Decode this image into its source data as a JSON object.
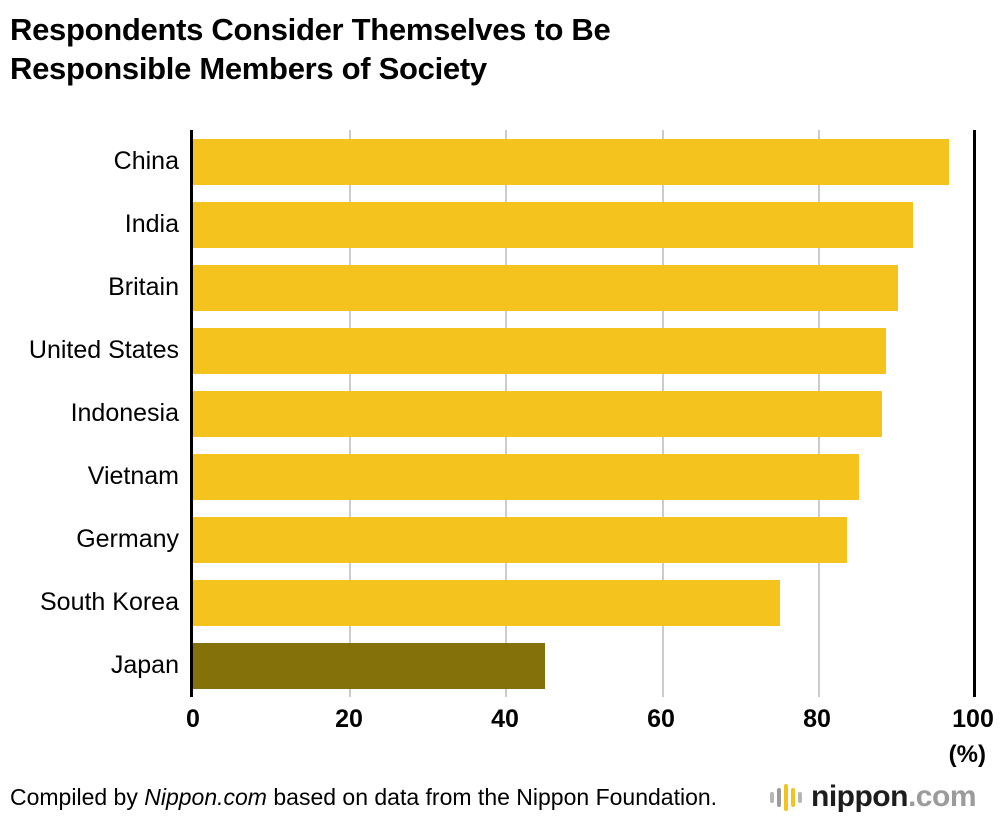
{
  "title": "Respondents Consider Themselves to Be Responsible Members of Society",
  "chart_data": {
    "type": "bar",
    "orientation": "horizontal",
    "title": "Respondents Consider Themselves to Be Responsible Members of Society",
    "categories": [
      "China",
      "India",
      "Britain",
      "United States",
      "Indonesia",
      "Vietnam",
      "Germany",
      "South Korea",
      "Japan"
    ],
    "values": [
      96.5,
      92,
      90,
      88.5,
      88,
      85,
      83.5,
      75,
      45
    ],
    "xlim": [
      0,
      100
    ],
    "x_ticks": [
      0,
      20,
      40,
      60,
      80,
      100
    ],
    "unit_label": "(%)",
    "xlabel": "",
    "ylabel": "",
    "grid": true,
    "gridline_color": "#cccccc",
    "bar_color": "#f5c31e",
    "highlight_category": "Japan",
    "highlight_color": "#857109",
    "legend": "none"
  },
  "footer": {
    "prefix": "Compiled by ",
    "source_italic": "Nippon.com",
    "suffix": " based on data from the Nippon Foundation.",
    "logo": {
      "name": "nippon",
      "tld": ".com",
      "bars": [
        {
          "h": 11,
          "c": "#b6b6b6"
        },
        {
          "h": 19,
          "c": "#9b9b9b"
        },
        {
          "h": 27,
          "c": "#f5c31e"
        },
        {
          "h": 19,
          "c": "#f5c31e"
        },
        {
          "h": 11,
          "c": "#b6b6b6"
        }
      ]
    }
  }
}
